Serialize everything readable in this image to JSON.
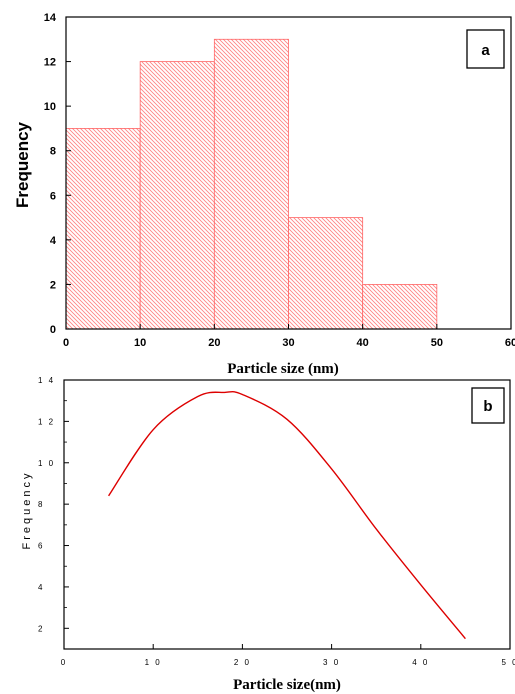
{
  "chart_data": [
    {
      "type": "bar",
      "panel_label": "a",
      "bin_edges": [
        0,
        10,
        20,
        30,
        40,
        50
      ],
      "values": [
        9,
        12,
        13,
        5,
        2
      ],
      "xlabel": "Particle size (nm)",
      "ylabel": "Frequency",
      "xlim": [
        0,
        60
      ],
      "ylim": [
        0,
        14
      ],
      "xticks": [
        "0",
        "10",
        "20",
        "30",
        "40",
        "50",
        "60"
      ],
      "yticks": [
        "0",
        "2",
        "4",
        "6",
        "8",
        "10",
        "12",
        "14"
      ],
      "bar_color": "#ff6666",
      "grid": false
    },
    {
      "type": "line",
      "panel_label": "b",
      "series": [
        {
          "color": "#dd0000",
          "x": [
            5,
            10,
            15,
            18,
            20,
            25,
            30,
            35,
            40,
            45
          ],
          "y": [
            8.4,
            11.6,
            13.2,
            13.4,
            13.3,
            12.1,
            9.7,
            6.8,
            4.1,
            1.5
          ]
        }
      ],
      "xlabel": "Particle size(nm)",
      "ylabel": "Frequency",
      "xlim": [
        0,
        50
      ],
      "ylim": [
        1,
        14
      ],
      "xticks": [
        "0",
        "10",
        "20",
        "30",
        "40",
        "50"
      ],
      "yticks": [
        "2",
        "4",
        "6",
        "8",
        "10",
        "12",
        "14"
      ],
      "grid": false
    }
  ]
}
